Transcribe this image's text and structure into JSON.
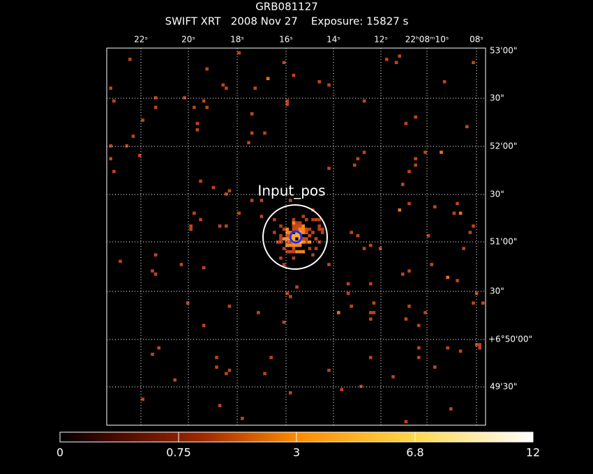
{
  "header": {
    "title": "GRB081127",
    "subtitle": "SWIFT XRT   2008 Nov 27    Exposure: 15827 s"
  },
  "image": {
    "top_labels": [
      "22ˢ",
      "20ˢ",
      "18ˢ",
      "16ˢ",
      "14ˢ",
      "12ˢ",
      "22ʰ08ᵐ10ˢ",
      "08ˢ"
    ],
    "right_labels": [
      "53'00\"",
      "30\"",
      "52'00\"",
      "30\"",
      "51'00\"",
      "30\"",
      "+6°50'00\"",
      "49'30\""
    ],
    "region_label": "Input_pos"
  },
  "colorbar": {
    "labels": [
      "0",
      "0.75",
      "3",
      "6.8",
      "12"
    ]
  }
}
